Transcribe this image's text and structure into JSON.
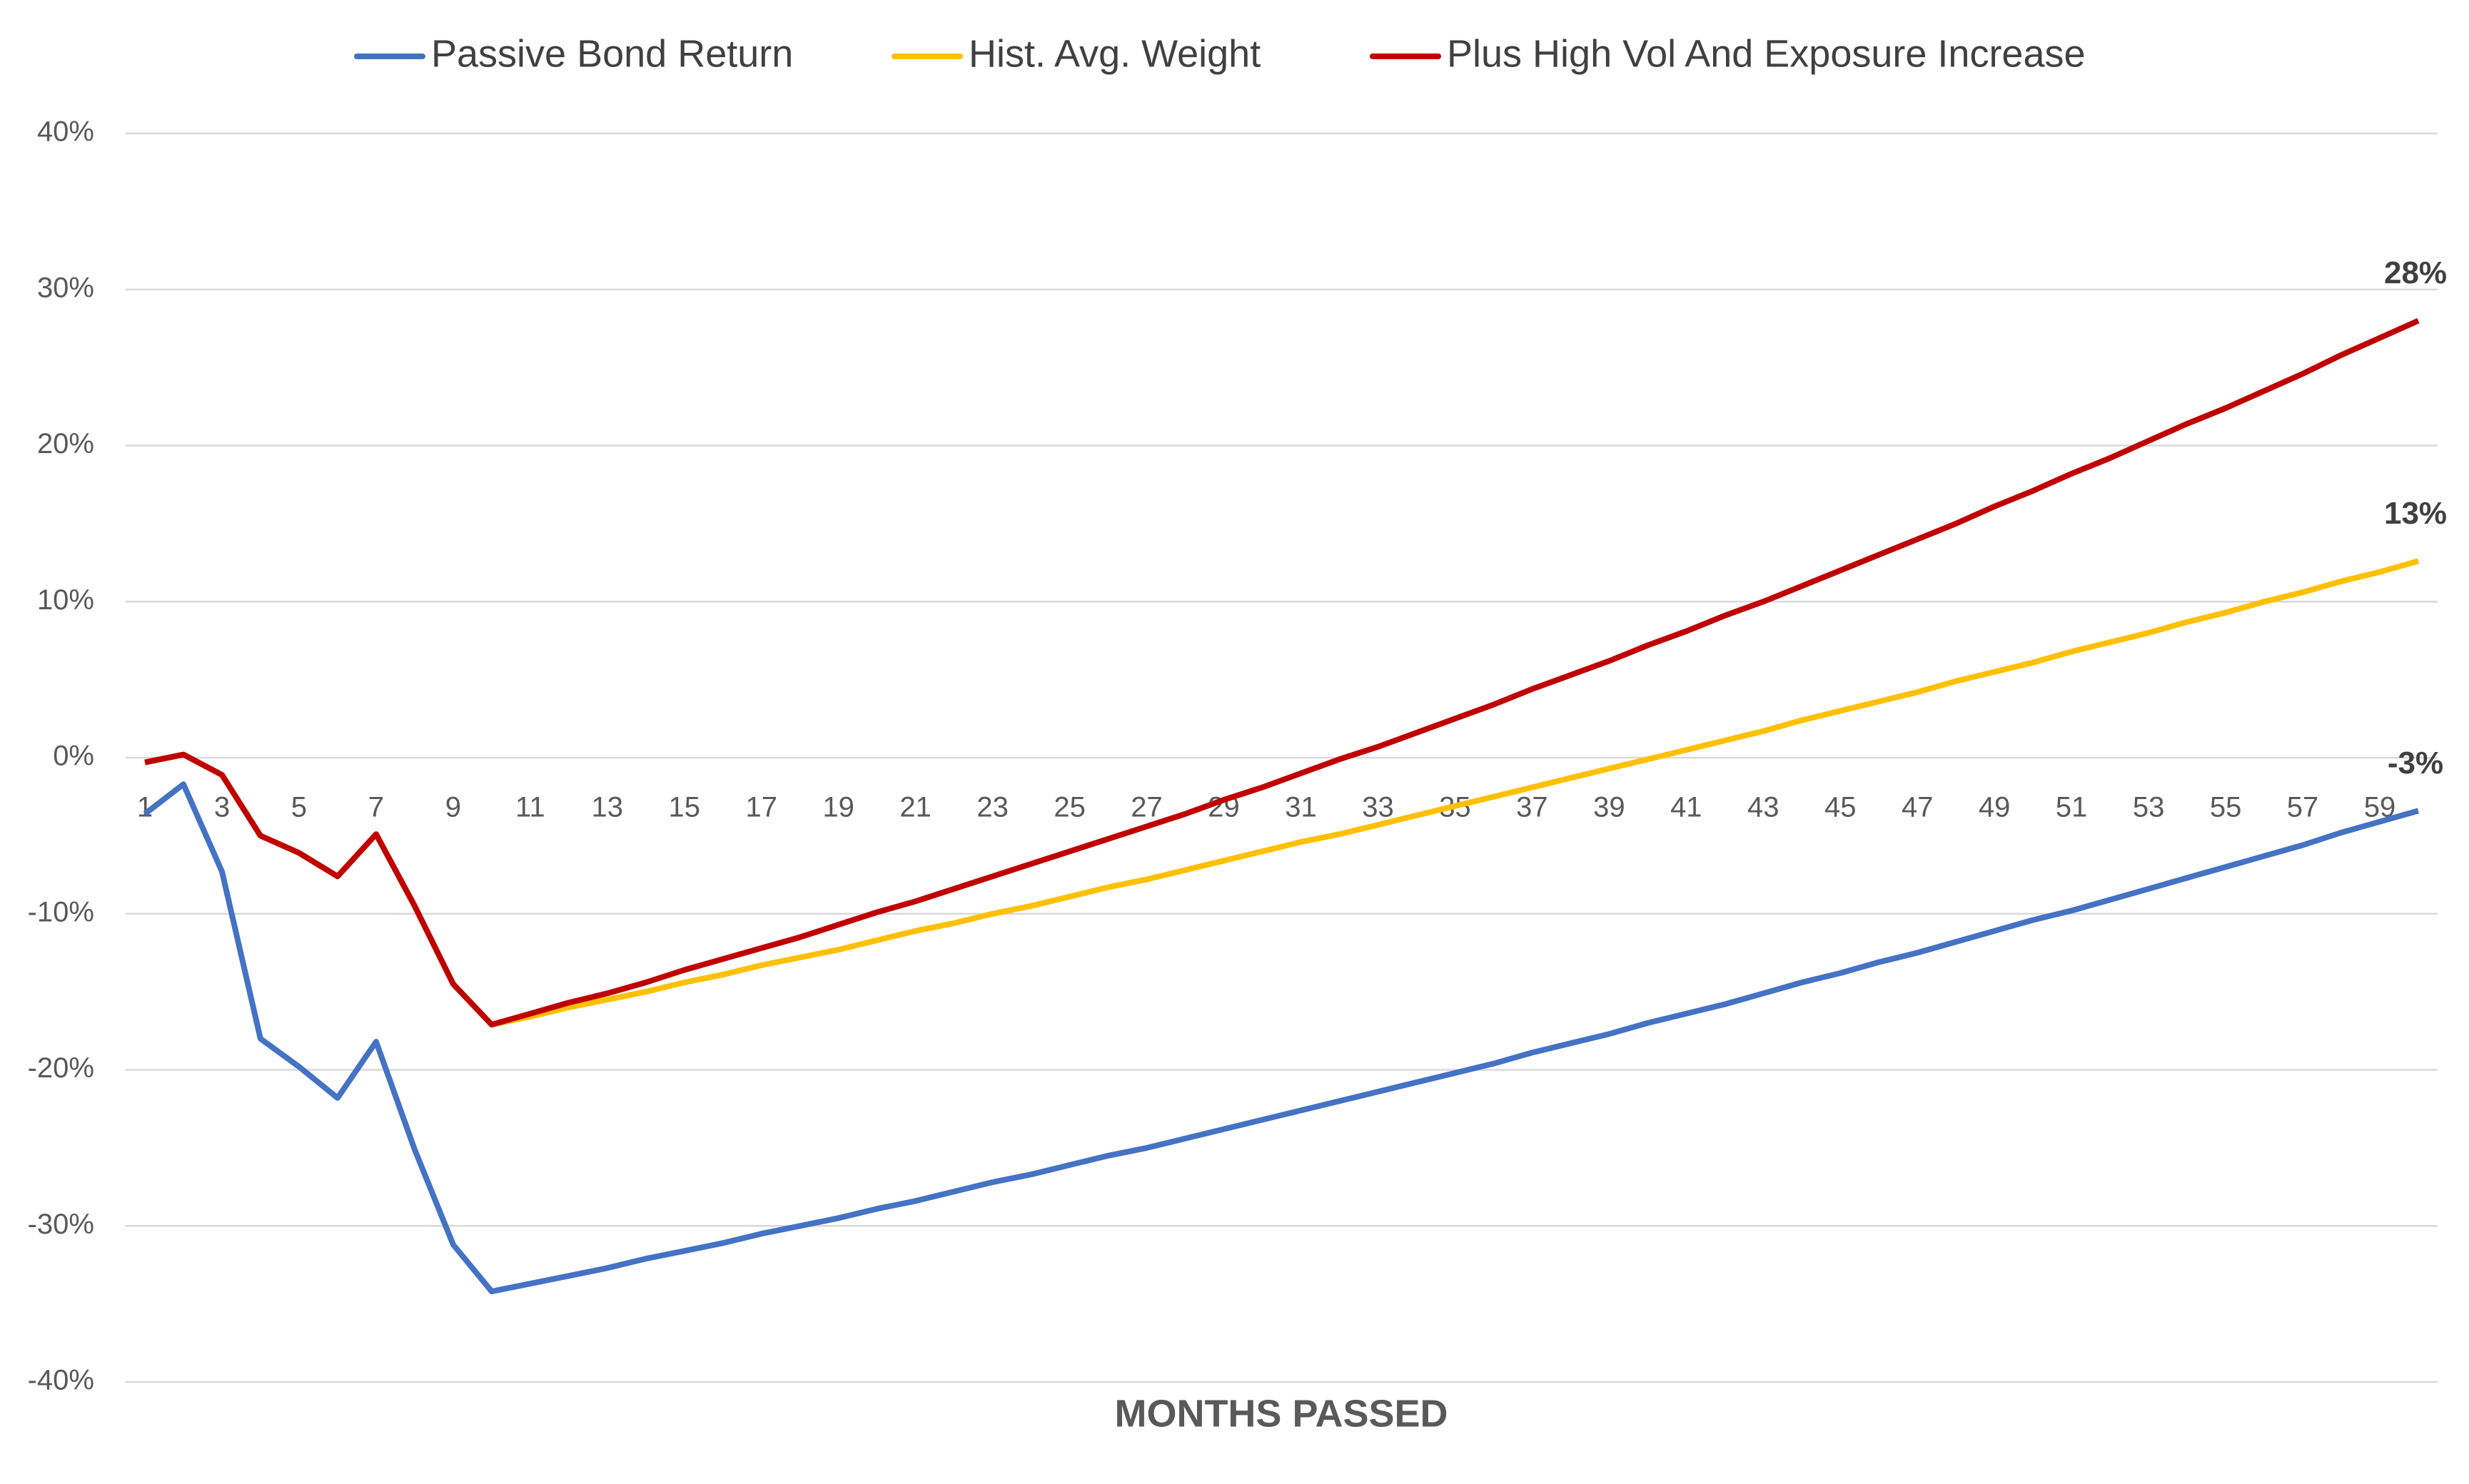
{
  "chart_data": {
    "type": "line",
    "x_label": "MONTHS PASSED",
    "legend": "top",
    "grid": true,
    "categories": [
      1,
      null,
      3,
      null,
      5,
      null,
      7,
      null,
      9,
      null,
      11,
      null,
      13,
      null,
      15,
      null,
      17,
      null,
      19,
      null,
      21,
      null,
      23,
      null,
      25,
      null,
      27,
      null,
      29,
      null,
      31,
      null,
      33,
      null,
      35,
      null,
      37,
      null,
      39,
      null,
      41,
      null,
      43,
      null,
      45,
      null,
      47,
      null,
      49,
      null,
      51,
      null,
      53,
      null,
      55,
      null,
      57,
      null,
      59,
      null
    ],
    "ylim": [
      -40,
      40
    ],
    "yticks": [
      {
        "value": -40,
        "label": "-40%"
      },
      {
        "value": -30,
        "label": "-30%"
      },
      {
        "value": -20,
        "label": "-20%"
      },
      {
        "value": -10,
        "label": "-10%"
      },
      {
        "value": 0,
        "label": "0%"
      },
      {
        "value": 10,
        "label": "10%"
      },
      {
        "value": 20,
        "label": "20%"
      },
      {
        "value": 30,
        "label": "30%"
      },
      {
        "value": 40,
        "label": "40%"
      }
    ],
    "series": [
      {
        "name": "Passive Bond Return",
        "color": "#4472c4",
        "values": [
          -3.6,
          -1.7,
          -7.3,
          -18.0,
          -19.8,
          -21.8,
          -18.2,
          -25.1,
          -31.2,
          -34.2,
          -33.7,
          -33.2,
          -32.7,
          -32.1,
          -31.6,
          -31.1,
          -30.5,
          -30.0,
          -29.5,
          -28.9,
          -28.4,
          -27.8,
          -27.2,
          -26.7,
          -26.1,
          -25.5,
          -25.0,
          -24.4,
          -23.8,
          -23.2,
          -22.6,
          -22.0,
          -21.4,
          -20.8,
          -20.2,
          -19.6,
          -18.9,
          -18.3,
          -17.7,
          -17.0,
          -16.4,
          -15.8,
          -15.1,
          -14.4,
          -13.8,
          -13.1,
          -12.5,
          -11.8,
          -11.1,
          -10.4,
          -9.8,
          -9.1,
          -8.4,
          -7.7,
          -7.0,
          -6.3,
          -5.6,
          -4.8,
          -4.1,
          -3.4
        ],
        "value_labels": [
          null,
          null,
          null,
          null,
          null,
          null,
          null,
          null,
          null,
          null,
          null,
          null,
          null,
          null,
          null,
          null,
          null,
          null,
          null,
          null,
          null,
          null,
          null,
          null,
          null,
          null,
          null,
          null,
          null,
          null,
          null,
          null,
          null,
          null,
          null,
          null,
          null,
          null,
          null,
          null,
          null,
          null,
          null,
          null,
          null,
          null,
          null,
          null,
          null,
          null,
          null,
          null,
          null,
          null,
          null,
          null,
          null,
          null,
          null,
          "-3%"
        ]
      },
      {
        "name": "Hist. Avg. Weight",
        "color": "#ffc000",
        "values": [
          -0.3,
          0.2,
          -1.1,
          -5.0,
          -6.1,
          -7.6,
          -4.9,
          -9.5,
          -14.5,
          -17.1,
          -16.6,
          -16.0,
          -15.5,
          -15.0,
          -14.4,
          -13.9,
          -13.3,
          -12.8,
          -12.3,
          -11.7,
          -11.1,
          -10.6,
          -10.0,
          -9.5,
          -8.9,
          -8.3,
          -7.8,
          -7.2,
          -6.6,
          -6.0,
          -5.4,
          -4.9,
          -4.3,
          -3.7,
          -3.1,
          -2.5,
          -1.9,
          -1.3,
          -0.7,
          -0.1,
          0.5,
          1.1,
          1.7,
          2.4,
          3.0,
          3.6,
          4.2,
          4.9,
          5.5,
          6.1,
          6.8,
          7.4,
          8.0,
          8.7,
          9.3,
          10.0,
          10.6,
          11.3,
          11.9,
          12.6
        ],
        "value_labels": [
          null,
          null,
          null,
          null,
          null,
          null,
          null,
          null,
          null,
          null,
          null,
          null,
          null,
          null,
          null,
          null,
          null,
          null,
          null,
          null,
          null,
          null,
          null,
          null,
          null,
          null,
          null,
          null,
          null,
          null,
          null,
          null,
          null,
          null,
          null,
          null,
          null,
          null,
          null,
          null,
          null,
          null,
          null,
          null,
          null,
          null,
          null,
          null,
          null,
          null,
          null,
          null,
          null,
          null,
          null,
          null,
          null,
          null,
          null,
          "13%"
        ]
      },
      {
        "name": "Plus High Vol And Exposure Increase",
        "color": "#c00000",
        "values": [
          -0.3,
          0.2,
          -1.1,
          -5.0,
          -6.1,
          -7.6,
          -4.9,
          -9.5,
          -14.5,
          -17.1,
          -16.4,
          -15.7,
          -15.1,
          -14.4,
          -13.6,
          -12.9,
          -12.2,
          -11.5,
          -10.7,
          -9.9,
          -9.2,
          -8.4,
          -7.6,
          -6.8,
          -6.0,
          -5.2,
          -4.4,
          -3.6,
          -2.7,
          -1.9,
          -1.0,
          -0.1,
          0.7,
          1.6,
          2.5,
          3.4,
          4.4,
          5.3,
          6.2,
          7.2,
          8.1,
          9.1,
          10.0,
          11.0,
          12.0,
          13.0,
          14.0,
          15.0,
          16.1,
          17.1,
          18.2,
          19.2,
          20.3,
          21.4,
          22.4,
          23.5,
          24.6,
          25.8,
          26.9,
          28.0
        ],
        "value_labels": [
          null,
          null,
          null,
          null,
          null,
          null,
          null,
          null,
          null,
          null,
          null,
          null,
          null,
          null,
          null,
          null,
          null,
          null,
          null,
          null,
          null,
          null,
          null,
          null,
          null,
          null,
          null,
          null,
          null,
          null,
          null,
          null,
          null,
          null,
          null,
          null,
          null,
          null,
          null,
          null,
          null,
          null,
          null,
          null,
          null,
          null,
          null,
          null,
          null,
          null,
          null,
          null,
          null,
          null,
          null,
          null,
          null,
          null,
          null,
          "28%"
        ]
      }
    ]
  }
}
